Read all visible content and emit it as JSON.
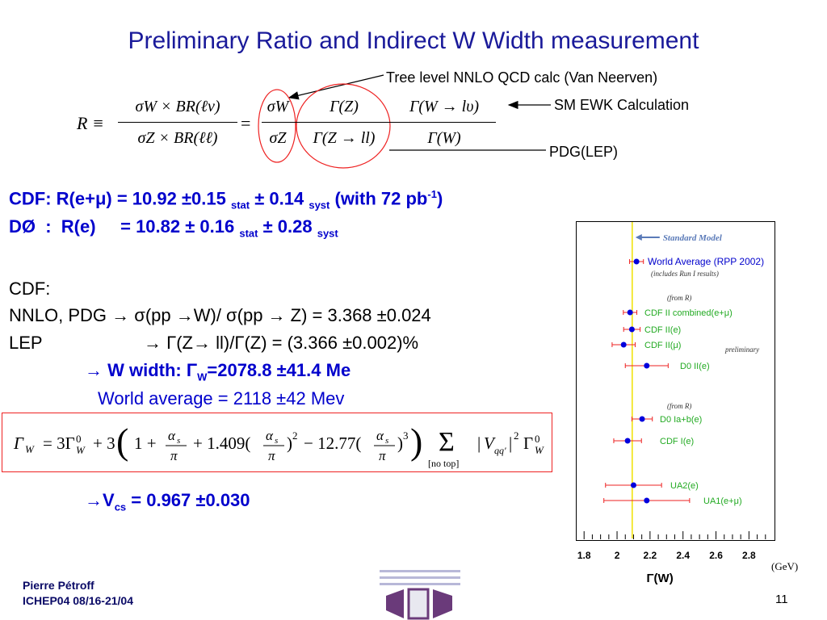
{
  "slide": {
    "title": "Preliminary Ratio and Indirect W Width measurement",
    "number": "11"
  },
  "annotations": {
    "tree_level": "Tree level NNLO QCD calc (Van Neerven)",
    "sm_ewk": "SM EWK Calculation",
    "pdg": "PDG(LEP)"
  },
  "equation_R": {
    "lhs": "R ≡",
    "num1": "σW × BR(ℓν)",
    "den1": "σZ × BR(ℓℓ)",
    "eq": "=",
    "sig_num": "σW",
    "sig_den": "σZ",
    "gz": "Γ(Z)",
    "gzll": "Γ(Z → ll)",
    "gwlv": "Γ(W → lυ)",
    "gw": "Γ(W)"
  },
  "results": {
    "cdf_prefix": "CDF:  R(e+μ) = 10.92 ±0.15 ",
    "cdf_stat": "stat",
    "cdf_mid": " ± 0.14 ",
    "cdf_syst": "syst",
    "cdf_tail": "  (with 72 pb",
    "cdf_sup": "-1",
    "cdf_close": ")",
    "d0_prefix": "DØ  :  R(e)     = 10.82 ± 0.16 ",
    "d0_stat": "stat",
    "d0_mid": " ± 0.28 ",
    "d0_syst": "syst"
  },
  "body": {
    "cdf_label": "CDF:",
    "nnlo_line": "NNLO, PDG → σ(pp →W)/ σ(pp → Z) = 3.368  ±0.024",
    "lep_label": "LEP",
    "lep_line": "→ Γ(Z→ ll)/Γ(Z) = (3.366 ±0.002)%",
    "width_prefix": "→ W width:  Γ",
    "width_sub": "W",
    "width_value": "=2078.8 ±41.4 Me",
    "world_avg": "World average = 2118   ±42 Mev",
    "vcs_prefix": "→V",
    "vcs_sub": "cs",
    "vcs_value": " = 0.967 ±0.030"
  },
  "formula_box": {
    "text": "Γ_W = 3Γ⁰_W + 3 (1 + α_s/π + 1.409(α_s/π)² − 12.77(α_s/π)³) Σ_[no top] |V_qq'|² Γ⁰_W"
  },
  "footer": {
    "name": "Pierre Pétroff",
    "conf": "ICHEP04 08/16-21/04"
  },
  "chart_data": {
    "type": "scatter",
    "title": "",
    "xlabel": "Γ(W)",
    "xunit": "(GeV)",
    "xlim": [
      1.75,
      2.95
    ],
    "xticks": [
      "1.8",
      "2",
      "2.2",
      "2.4",
      "2.6",
      "2.8"
    ],
    "reference_line": {
      "label": "Standard Model",
      "x": 2.092,
      "color": "#f0e000"
    },
    "notes": [
      "(includes Run I results)",
      "(from R)",
      "preliminary",
      "(from R)"
    ],
    "points": [
      {
        "label": "World Average (RPP 2002)",
        "x": 2.118,
        "err": 0.042,
        "label_color": "#0000cc"
      },
      {
        "label": "CDF II combined(e+μ)",
        "x": 2.079,
        "err": 0.041,
        "label_color": "#22aa22"
      },
      {
        "label": "CDF II(e)",
        "x": 2.09,
        "err": 0.05,
        "label_color": "#22aa22"
      },
      {
        "label": "CDF II(μ)",
        "x": 2.04,
        "err": 0.07,
        "label_color": "#22aa22"
      },
      {
        "label": "D0 II(e)",
        "x": 2.18,
        "err": 0.13,
        "label_color": "#22aa22"
      },
      {
        "label": "D0 Ia+b(e)",
        "x": 2.152,
        "err": 0.062,
        "label_color": "#22aa22"
      },
      {
        "label": "CDF I(e)",
        "x": 2.064,
        "err": 0.084,
        "label_color": "#22aa22"
      },
      {
        "label": "UA2(e)",
        "x": 2.1,
        "err": 0.17,
        "label_color": "#22aa22"
      },
      {
        "label": "UA1(e+μ)",
        "x": 2.18,
        "err": 0.26,
        "label_color": "#22aa22"
      }
    ]
  },
  "colors": {
    "title": "#1a1a9a",
    "results": "#0000cc",
    "point": "#0000dd",
    "errorbar": "#ee2222",
    "circle": "#ee2222"
  }
}
